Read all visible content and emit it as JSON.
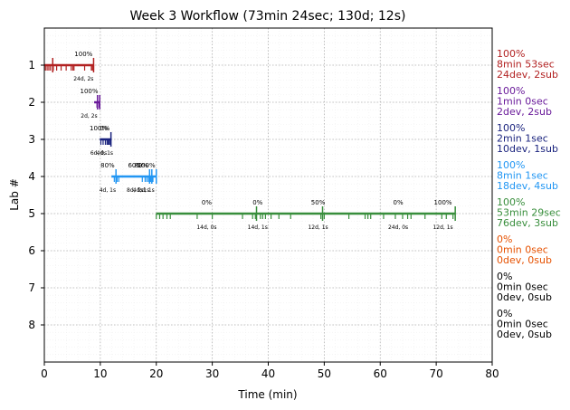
{
  "chart_data": {
    "type": "timeline",
    "title": "Week 3 Workflow (73min 24sec; 130d; 12s)",
    "xlabel": "Time (min)",
    "ylabel": "Lab #",
    "xlim": [
      0,
      80
    ],
    "ylim": [
      9,
      0
    ],
    "x_ticks": [
      "0",
      "10",
      "20",
      "30",
      "40",
      "50",
      "60",
      "70",
      "80"
    ],
    "y_ticks": [
      "1",
      "2",
      "3",
      "4",
      "5",
      "6",
      "7",
      "8"
    ],
    "grid": true,
    "labs": [
      {
        "lab": 1,
        "color": "#b22222",
        "start": 0.0,
        "end": 8.9,
        "right_label": [
          "100%",
          "8min 53sec",
          "24dev, 2sub"
        ],
        "dev_ticks": [
          0.2,
          0.5,
          0.8,
          1.1,
          1.6,
          2.2,
          3.0,
          3.9,
          4.8,
          5.1,
          5.3,
          7.2,
          8.4,
          8.6,
          8.8
        ],
        "sub_ticks": [
          1.5,
          8.8
        ],
        "annotations": [
          {
            "x": 7.0,
            "top": "100%",
            "bottom": "24d, 2s"
          }
        ]
      },
      {
        "lab": 2,
        "color": "#6a1b9a",
        "start": 8.9,
        "end": 9.9,
        "right_label": [
          "100%",
          "1min 0sec",
          "2dev, 2sub"
        ],
        "dev_ticks": [
          9.4,
          9.8
        ],
        "sub_ticks": [
          9.5,
          9.9
        ],
        "annotations": [
          {
            "x": 8.0,
            "top": "100%",
            "bottom": "2d, 2s"
          }
        ]
      },
      {
        "lab": 3,
        "color": "#1a237e",
        "start": 9.9,
        "end": 12.0,
        "right_label": [
          "100%",
          "2min 1sec",
          "10dev, 1sub"
        ],
        "dev_ticks": [
          10.1,
          10.5,
          10.9,
          11.2,
          11.4,
          11.6,
          11.8
        ],
        "sub_ticks": [
          11.9
        ],
        "annotations": [
          {
            "x": 9.7,
            "top": "100%",
            "bottom": "6d, 0s"
          },
          {
            "x": 10.8,
            "top": "0%",
            "bottom": "4d, 1s"
          }
        ]
      },
      {
        "lab": 4,
        "color": "#2196f3",
        "start": 12.0,
        "end": 20.0,
        "right_label": [
          "100%",
          "8min 1sec",
          "18dev, 4sub"
        ],
        "dev_ticks": [
          12.5,
          13.0,
          13.3,
          17.5,
          18.0,
          18.3,
          18.6,
          19.0,
          19.4
        ],
        "sub_ticks": [
          12.8,
          18.8,
          19.2,
          20.0
        ],
        "annotations": [
          {
            "x": 11.3,
            "top": "80%",
            "bottom": "4d, 1s"
          },
          {
            "x": 16.2,
            "top": "60%",
            "bottom": "8d, 1s"
          },
          {
            "x": 17.3,
            "top": "80%",
            "bottom": "4d, 1s"
          },
          {
            "x": 18.2,
            "top": "100%",
            "bottom": "2d, 1s"
          }
        ]
      },
      {
        "lab": 5,
        "color": "#388e3c",
        "start": 20.0,
        "end": 73.4,
        "right_label": [
          "100%",
          "53min 29sec",
          "76dev, 3sub"
        ],
        "dev_ticks": [
          20.0,
          20.6,
          21.2,
          21.9,
          22.5,
          27.3,
          30.0,
          35.4,
          37.2,
          37.7,
          38.6,
          39.0,
          39.5,
          40.5,
          41.9,
          44.0,
          49.4,
          50.0,
          54.4,
          57.3,
          57.8,
          58.3,
          60.6,
          62.7,
          64.0,
          64.9,
          65.5,
          68.0,
          71.0,
          71.8,
          73.0
        ],
        "sub_ticks": [
          37.9,
          49.7,
          73.4
        ],
        "annotations": [
          {
            "x": 29.0,
            "top": "0%",
            "bottom": "14d, 0s"
          },
          {
            "x": 38.1,
            "top": "0%",
            "bottom": "14d, 1s"
          },
          {
            "x": 48.9,
            "top": "50%",
            "bottom": "12d, 1s"
          },
          {
            "x": 63.2,
            "top": "0%",
            "bottom": "24d, 0s"
          },
          {
            "x": 71.2,
            "top": "100%",
            "bottom": "12d, 1s"
          }
        ]
      },
      {
        "lab": 6,
        "color": "#e65100",
        "start": null,
        "end": null,
        "right_label": [
          "0%",
          "0min 0sec",
          "0dev, 0sub"
        ],
        "dev_ticks": [],
        "sub_ticks": [],
        "annotations": []
      },
      {
        "lab": 7,
        "color": "#000000",
        "start": null,
        "end": null,
        "right_label": [
          "0%",
          "0min 0sec",
          "0dev, 0sub"
        ],
        "dev_ticks": [],
        "sub_ticks": [],
        "annotations": []
      },
      {
        "lab": 8,
        "color": "#000000",
        "start": null,
        "end": null,
        "right_label": [
          "0%",
          "0min 0sec",
          "0dev, 0sub"
        ],
        "dev_ticks": [],
        "sub_ticks": [],
        "annotations": []
      }
    ]
  }
}
